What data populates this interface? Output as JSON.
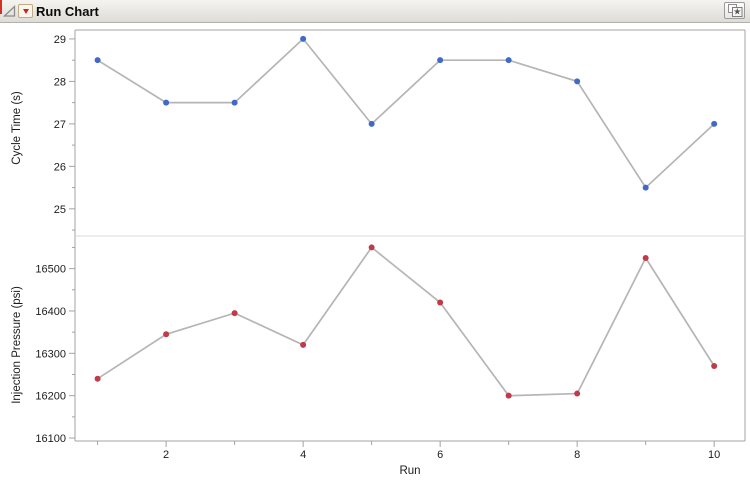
{
  "header": {
    "title": "Run Chart"
  },
  "colors": {
    "axis": "#a3a3a3",
    "divider": "#dadada",
    "tick_label": "#1c1c1c",
    "line": "#b5b5b5",
    "cycle_time_marker": "#4169c8",
    "pressure_marker": "#c03a49",
    "red_triangle": "#ce2029"
  },
  "x_axis": {
    "label": "Run",
    "major_ticks": [
      2,
      4,
      6,
      8,
      10
    ],
    "minor_ticks": [
      1,
      3,
      5,
      7,
      9
    ],
    "xlim": [
      0.67,
      10.45
    ]
  },
  "chart_data": [
    {
      "type": "line",
      "title": "",
      "xlabel": "Run",
      "ylabel": "Cycle Time (s)",
      "x": [
        1,
        2,
        3,
        4,
        5,
        6,
        7,
        8,
        9,
        10
      ],
      "values": [
        28.5,
        27.5,
        27.5,
        29,
        27,
        28.5,
        28.5,
        28,
        25.5,
        27
      ],
      "y_ticks": [
        25,
        26,
        27,
        28,
        29
      ],
      "ylim": [
        24.36,
        29.21
      ],
      "marker_color": "#4169c8",
      "line_color": "#b5b5b5",
      "grid": false
    },
    {
      "type": "line",
      "title": "",
      "xlabel": "Run",
      "ylabel": "Injection Pressure (psi)",
      "x": [
        1,
        2,
        3,
        4,
        5,
        6,
        7,
        8,
        9,
        10
      ],
      "values": [
        16240,
        16345,
        16395,
        16320,
        16550,
        16420,
        16200,
        16205,
        16525,
        16270
      ],
      "y_ticks": [
        16100,
        16200,
        16300,
        16400,
        16500
      ],
      "ylim": [
        16093,
        16577
      ],
      "marker_color": "#c03a49",
      "line_color": "#b5b5b5",
      "grid": false
    }
  ]
}
